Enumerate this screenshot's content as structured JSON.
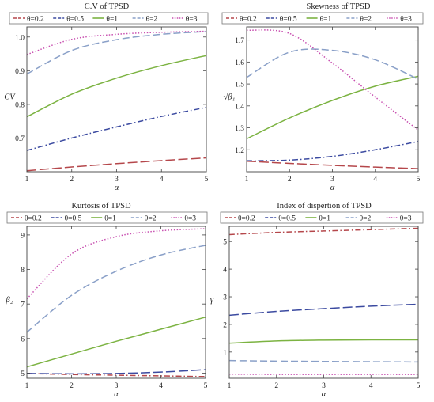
{
  "chart_data": [
    {
      "type": "line",
      "title": "C.V of TPSD",
      "xlabel": "α",
      "ylabel": "CV",
      "xlim": [
        1,
        5
      ],
      "ylim": [
        0.6,
        1.03
      ],
      "xticks": [
        "1",
        "2",
        "3",
        "4",
        "5"
      ],
      "yticks": [
        "0.7",
        "0.8",
        "0.9",
        "1.0"
      ],
      "ytick_values": [
        0.7,
        0.8,
        0.9,
        1.0
      ],
      "legend_position": "top",
      "series": [
        {
          "name": "θ=0.2",
          "color": "#b5474b",
          "dash": "long-dash",
          "x": [
            1,
            2,
            3,
            4,
            5
          ],
          "values": [
            0.603,
            0.614,
            0.624,
            0.633,
            0.641
          ]
        },
        {
          "name": "θ=0.5",
          "color": "#3b4aa0",
          "dash": "dash-dot",
          "x": [
            1,
            2,
            3,
            4,
            5
          ],
          "values": [
            0.663,
            0.7,
            0.733,
            0.764,
            0.791
          ]
        },
        {
          "name": "θ=1",
          "color": "#7cb342",
          "dash": "solid",
          "x": [
            1,
            2,
            3,
            4,
            5
          ],
          "values": [
            0.763,
            0.83,
            0.878,
            0.915,
            0.945
          ]
        },
        {
          "name": "θ=2",
          "color": "#8aa0c8",
          "dash": "dash",
          "x": [
            1,
            2,
            3,
            4,
            5
          ],
          "values": [
            0.89,
            0.96,
            0.992,
            1.008,
            1.016
          ]
        },
        {
          "name": "θ=3",
          "color": "#c84fb0",
          "dash": "dot",
          "x": [
            1,
            2,
            3,
            4,
            5
          ],
          "values": [
            0.948,
            0.993,
            1.008,
            1.014,
            1.017
          ]
        }
      ]
    },
    {
      "type": "line",
      "title": "Skewness of TPSD",
      "xlabel": "α",
      "ylabel": "√β₁",
      "xlim": [
        1,
        5
      ],
      "ylim": [
        1.1,
        1.76
      ],
      "xticks": [
        "1",
        "2",
        "3",
        "4",
        "5"
      ],
      "yticks": [
        "1.2",
        "1.3",
        "1.4",
        "1.5",
        "1.6",
        "1.7"
      ],
      "ytick_values": [
        1.2,
        1.3,
        1.4,
        1.5,
        1.6,
        1.7
      ],
      "legend_position": "top",
      "series": [
        {
          "name": "θ=0.2",
          "color": "#b5474b",
          "dash": "long-dash",
          "x": [
            1,
            2,
            3,
            4,
            5
          ],
          "values": [
            1.148,
            1.138,
            1.129,
            1.121,
            1.114
          ]
        },
        {
          "name": "θ=0.5",
          "color": "#3b4aa0",
          "dash": "dash-dot",
          "x": [
            1,
            2,
            3,
            4,
            5
          ],
          "values": [
            1.15,
            1.153,
            1.17,
            1.2,
            1.238
          ]
        },
        {
          "name": "θ=1",
          "color": "#7cb342",
          "dash": "solid",
          "x": [
            1,
            2,
            3,
            4,
            5
          ],
          "values": [
            1.25,
            1.345,
            1.425,
            1.49,
            1.535
          ]
        },
        {
          "name": "θ=2",
          "color": "#8aa0c8",
          "dash": "dash",
          "x": [
            1,
            2,
            3,
            4,
            5
          ],
          "values": [
            1.53,
            1.645,
            1.653,
            1.61,
            1.522
          ]
        },
        {
          "name": "θ=3",
          "color": "#c84fb0",
          "dash": "dot",
          "x": [
            1,
            2,
            3,
            4,
            5
          ],
          "values": [
            1.745,
            1.73,
            1.595,
            1.44,
            1.29
          ]
        }
      ]
    },
    {
      "type": "line",
      "title": "Kurtosis of TPSD",
      "xlabel": "α",
      "ylabel": "β₂",
      "xlim": [
        1,
        5
      ],
      "ylim": [
        4.85,
        9.25
      ],
      "xticks": [
        "1",
        "2",
        "3",
        "4",
        "5"
      ],
      "yticks": [
        "5",
        "6",
        "7",
        "8",
        "9"
      ],
      "ytick_values": [
        5,
        6,
        7,
        8,
        9
      ],
      "legend_position": "top",
      "series": [
        {
          "name": "θ=0.2",
          "color": "#b5474b",
          "dash": "dash-dot",
          "x": [
            1,
            2,
            3,
            4,
            5
          ],
          "values": [
            4.99,
            4.96,
            4.94,
            4.92,
            4.9
          ]
        },
        {
          "name": "θ=0.5",
          "color": "#3b4aa0",
          "dash": "long-dash",
          "x": [
            1,
            2,
            3,
            4,
            5
          ],
          "values": [
            4.99,
            4.98,
            4.99,
            5.03,
            5.1
          ]
        },
        {
          "name": "θ=1",
          "color": "#7cb342",
          "dash": "solid",
          "x": [
            1,
            2,
            3,
            4,
            5
          ],
          "values": [
            5.18,
            5.55,
            5.92,
            6.27,
            6.62
          ]
        },
        {
          "name": "θ=2",
          "color": "#8aa0c8",
          "dash": "dash",
          "x": [
            1,
            2,
            3,
            4,
            5
          ],
          "values": [
            6.18,
            7.25,
            7.95,
            8.42,
            8.7
          ]
        },
        {
          "name": "θ=3",
          "color": "#c84fb0",
          "dash": "dot",
          "x": [
            1,
            2,
            3,
            4,
            5
          ],
          "values": [
            7.15,
            8.45,
            8.95,
            9.12,
            9.18
          ]
        }
      ]
    },
    {
      "type": "line",
      "title": "Index of dispertion of TPSD",
      "xlabel": "α",
      "ylabel": "γ",
      "xlim": [
        1,
        5
      ],
      "ylim": [
        0.05,
        5.55
      ],
      "xticks": [
        "1",
        "2",
        "3",
        "4",
        "5"
      ],
      "yticks": [
        "1",
        "2",
        "3",
        "4",
        "5"
      ],
      "ytick_values": [
        1,
        2,
        3,
        4,
        5
      ],
      "legend_position": "top",
      "series": [
        {
          "name": "θ=0.2",
          "color": "#b5474b",
          "dash": "dash-dot",
          "x": [
            1,
            2,
            3,
            4,
            5
          ],
          "values": [
            5.25,
            5.33,
            5.38,
            5.43,
            5.48
          ]
        },
        {
          "name": "θ=0.5",
          "color": "#3b4aa0",
          "dash": "long-dash",
          "x": [
            1,
            2,
            3,
            4,
            5
          ],
          "values": [
            2.33,
            2.47,
            2.57,
            2.66,
            2.73
          ]
        },
        {
          "name": "θ=1",
          "color": "#7cb342",
          "dash": "solid",
          "x": [
            1,
            2,
            3,
            4,
            5
          ],
          "values": [
            1.32,
            1.4,
            1.43,
            1.44,
            1.44
          ]
        },
        {
          "name": "θ=2",
          "color": "#8aa0c8",
          "dash": "dash",
          "x": [
            1,
            2,
            3,
            4,
            5
          ],
          "values": [
            0.69,
            0.67,
            0.66,
            0.65,
            0.64
          ]
        },
        {
          "name": "θ=3",
          "color": "#c84fb0",
          "dash": "dot",
          "x": [
            1,
            2,
            3,
            4,
            5
          ],
          "values": [
            0.2,
            0.19,
            0.19,
            0.19,
            0.19
          ]
        }
      ]
    }
  ]
}
